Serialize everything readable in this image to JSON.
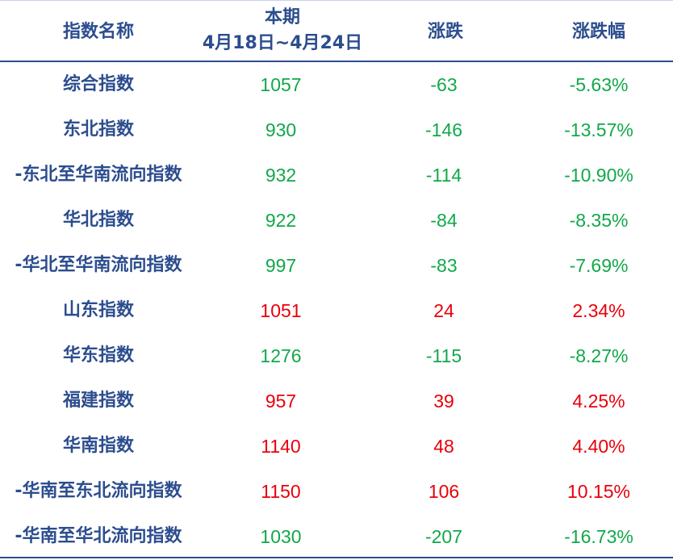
{
  "header": {
    "name": "指数名称",
    "period": "本期",
    "period_range": "4月18日~4月24日",
    "change": "涨跌",
    "change_pct": "涨跌幅"
  },
  "colors": {
    "down": "#12a84a",
    "up": "#e8000b"
  },
  "table": {
    "rows": [
      {
        "name": "综合指数",
        "value": "1057",
        "change": "-63",
        "change_pct": "-5.63%",
        "trend": "down"
      },
      {
        "name": "东北指数",
        "value": "930",
        "change": "-146",
        "change_pct": "-13.57%",
        "trend": "down"
      },
      {
        "name": "-东北至华南流向指数",
        "value": "932",
        "change": "-114",
        "change_pct": "-10.90%",
        "trend": "down"
      },
      {
        "name": "华北指数",
        "value": "922",
        "change": "-84",
        "change_pct": "-8.35%",
        "trend": "down"
      },
      {
        "name": "-华北至华南流向指数",
        "value": "997",
        "change": "-83",
        "change_pct": "-7.69%",
        "trend": "down"
      },
      {
        "name": "山东指数",
        "value": "1051",
        "change": "24",
        "change_pct": "2.34%",
        "trend": "up"
      },
      {
        "name": "华东指数",
        "value": "1276",
        "change": "-115",
        "change_pct": "-8.27%",
        "trend": "down"
      },
      {
        "name": "福建指数",
        "value": "957",
        "change": "39",
        "change_pct": "4.25%",
        "trend": "up"
      },
      {
        "name": "华南指数",
        "value": "1140",
        "change": "48",
        "change_pct": "4.40%",
        "trend": "up"
      },
      {
        "name": "-华南至东北流向指数",
        "value": "1150",
        "change": "106",
        "change_pct": "10.15%",
        "trend": "up"
      },
      {
        "name": "-华南至华北流向指数",
        "value": "1030",
        "change": "-207",
        "change_pct": "-16.73%",
        "trend": "down"
      }
    ]
  }
}
